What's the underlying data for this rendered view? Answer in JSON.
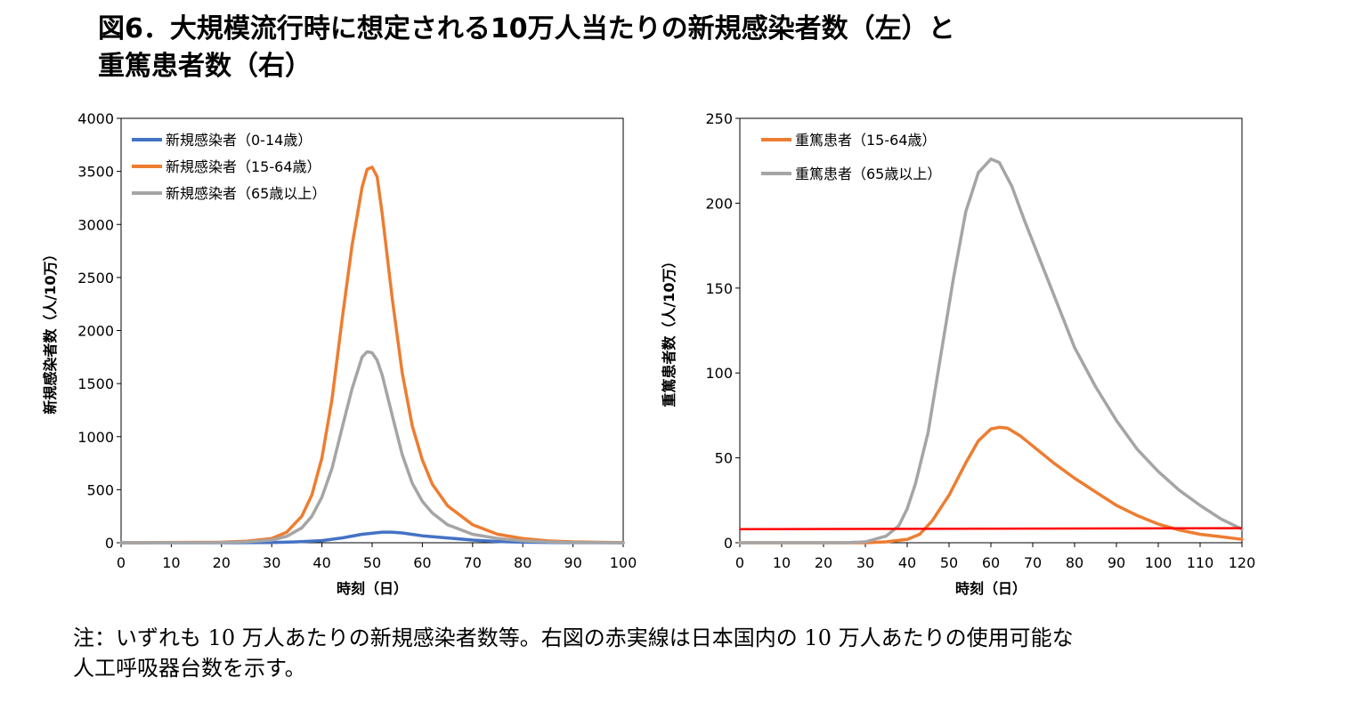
{
  "title": {
    "line1": "図6．大規模流行時に想定される10万人当たりの新規感染者数（左）と",
    "line2": "重篤患者数（右）"
  },
  "note": {
    "line1": "注：いずれも 10 万人あたりの新規感染者数等。右図の赤実線は日本国内の 10 万人あたりの使用可能な",
    "line2": "人工呼吸器台数を示す。"
  },
  "chart_data": [
    {
      "type": "line",
      "xlabel": "時刻（日）",
      "ylabel": "新規感染者数（人/10万）",
      "xlim": [
        0,
        100
      ],
      "ylim": [
        0,
        4000
      ],
      "xticks": [
        "0",
        "10",
        "20",
        "30",
        "40",
        "50",
        "60",
        "70",
        "80",
        "90",
        "100"
      ],
      "yticks": [
        "0",
        "500",
        "1000",
        "1500",
        "2000",
        "2500",
        "3000",
        "3500",
        "4000"
      ],
      "legend_position": "top-left",
      "series": [
        {
          "name": "新規感染者（0-14歳）",
          "color": "#4472c4",
          "points": [
            [
              0,
              0
            ],
            [
              20,
              0
            ],
            [
              30,
              2
            ],
            [
              35,
              8
            ],
            [
              40,
              20
            ],
            [
              44,
              45
            ],
            [
              48,
              80
            ],
            [
              52,
              100
            ],
            [
              54,
              100
            ],
            [
              56,
              92
            ],
            [
              60,
              65
            ],
            [
              65,
              45
            ],
            [
              70,
              25
            ],
            [
              75,
              12
            ],
            [
              80,
              5
            ],
            [
              90,
              1
            ],
            [
              100,
              0
            ]
          ]
        },
        {
          "name": "新規感染者（15-64歳）",
          "color": "#ed7d31",
          "points": [
            [
              0,
              0
            ],
            [
              20,
              5
            ],
            [
              25,
              15
            ],
            [
              30,
              40
            ],
            [
              33,
              100
            ],
            [
              36,
              250
            ],
            [
              38,
              450
            ],
            [
              40,
              800
            ],
            [
              42,
              1350
            ],
            [
              44,
              2100
            ],
            [
              46,
              2800
            ],
            [
              48,
              3350
            ],
            [
              49,
              3520
            ],
            [
              50,
              3540
            ],
            [
              51,
              3450
            ],
            [
              52,
              3100
            ],
            [
              54,
              2300
            ],
            [
              56,
              1600
            ],
            [
              58,
              1100
            ],
            [
              60,
              780
            ],
            [
              62,
              550
            ],
            [
              65,
              350
            ],
            [
              70,
              170
            ],
            [
              75,
              80
            ],
            [
              80,
              40
            ],
            [
              85,
              18
            ],
            [
              90,
              8
            ],
            [
              100,
              1
            ]
          ]
        },
        {
          "name": "新規感染者（65歳以上）",
          "color": "#a5a5a5",
          "points": [
            [
              0,
              0
            ],
            [
              20,
              2
            ],
            [
              25,
              8
            ],
            [
              30,
              25
            ],
            [
              33,
              60
            ],
            [
              36,
              140
            ],
            [
              38,
              250
            ],
            [
              40,
              430
            ],
            [
              42,
              700
            ],
            [
              44,
              1080
            ],
            [
              46,
              1450
            ],
            [
              48,
              1750
            ],
            [
              49,
              1800
            ],
            [
              50,
              1790
            ],
            [
              51,
              1720
            ],
            [
              52,
              1580
            ],
            [
              54,
              1200
            ],
            [
              56,
              830
            ],
            [
              58,
              560
            ],
            [
              60,
              390
            ],
            [
              62,
              280
            ],
            [
              65,
              170
            ],
            [
              70,
              80
            ],
            [
              75,
              40
            ],
            [
              80,
              18
            ],
            [
              85,
              8
            ],
            [
              90,
              3
            ],
            [
              100,
              0
            ]
          ]
        }
      ]
    },
    {
      "type": "line",
      "xlabel": "時刻（日）",
      "ylabel": "重篤患者数（人/10万）",
      "xlim": [
        0,
        120
      ],
      "ylim": [
        0,
        250
      ],
      "xticks": [
        "0",
        "10",
        "20",
        "30",
        "40",
        "50",
        "60",
        "70",
        "80",
        "90",
        "100",
        "110",
        "120"
      ],
      "yticks": [
        "0",
        "50",
        "100",
        "150",
        "200",
        "250"
      ],
      "legend_position": "top-left",
      "reference_line": {
        "y_start": 8.0,
        "y_end": 8.6,
        "color": "#ff0000"
      },
      "series": [
        {
          "name": "重篤患者（15-64歳）",
          "color": "#ed7d31",
          "points": [
            [
              0,
              0
            ],
            [
              30,
              0
            ],
            [
              35,
              0.5
            ],
            [
              40,
              2
            ],
            [
              43,
              5
            ],
            [
              46,
              13
            ],
            [
              50,
              28
            ],
            [
              54,
              47
            ],
            [
              57,
              60
            ],
            [
              60,
              67
            ],
            [
              62,
              68
            ],
            [
              64,
              67.5
            ],
            [
              67,
              63
            ],
            [
              70,
              57
            ],
            [
              75,
              47
            ],
            [
              80,
              38
            ],
            [
              85,
              30
            ],
            [
              90,
              22
            ],
            [
              95,
              16
            ],
            [
              100,
              11
            ],
            [
              105,
              7.5
            ],
            [
              110,
              5
            ],
            [
              115,
              3.5
            ],
            [
              120,
              2
            ]
          ]
        },
        {
          "name": "重篤患者（65歳以上）",
          "color": "#a5a5a5",
          "points": [
            [
              0,
              0
            ],
            [
              25,
              0
            ],
            [
              30,
              0.5
            ],
            [
              35,
              4
            ],
            [
              38,
              10
            ],
            [
              40,
              20
            ],
            [
              42,
              35
            ],
            [
              45,
              65
            ],
            [
              48,
              110
            ],
            [
              51,
              155
            ],
            [
              54,
              195
            ],
            [
              57,
              218
            ],
            [
              60,
              226
            ],
            [
              62,
              224
            ],
            [
              65,
              210
            ],
            [
              68,
              190
            ],
            [
              72,
              165
            ],
            [
              76,
              140
            ],
            [
              80,
              115
            ],
            [
              85,
              92
            ],
            [
              90,
              72
            ],
            [
              95,
              55
            ],
            [
              100,
              42
            ],
            [
              105,
              31
            ],
            [
              110,
              22
            ],
            [
              115,
              14
            ],
            [
              120,
              8
            ]
          ]
        }
      ]
    }
  ]
}
